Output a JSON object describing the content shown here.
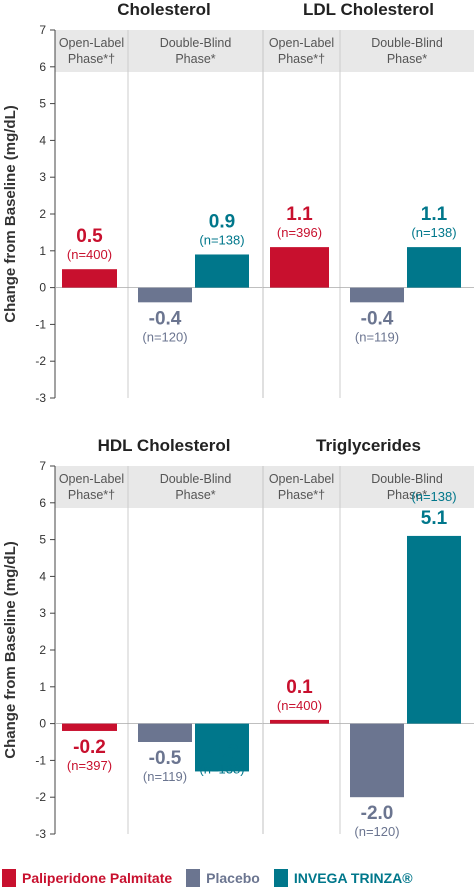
{
  "chart_data": [
    {
      "type": "bar",
      "title": "Cholesterol",
      "ylabel": "Change from Baseline (mg/dL)",
      "ylim": [
        -3,
        7
      ],
      "yticks": [
        "7",
        "6",
        "5",
        "4",
        "3",
        "2",
        "1",
        "0",
        "-1",
        "-2",
        "-3"
      ],
      "phases": [
        "Open-Label Phase*†",
        "Double-Blind Phase*"
      ],
      "bars": [
        {
          "series": "Paliperidone Palmitate",
          "phase": 0,
          "value": 0.5,
          "label": "0.5",
          "n": "(n=400)"
        },
        {
          "series": "Placebo",
          "phase": 1,
          "value": -0.4,
          "label": "-0.4",
          "n": "(n=120)"
        },
        {
          "series": "INVEGA TRINZA®",
          "phase": 1,
          "value": 0.9,
          "label": "0.9",
          "n": "(n=138)"
        }
      ]
    },
    {
      "type": "bar",
      "title": "LDL Cholesterol",
      "ylim": [
        -3,
        7
      ],
      "phases": [
        "Open-Label Phase*†",
        "Double-Blind Phase*"
      ],
      "bars": [
        {
          "series": "Paliperidone Palmitate",
          "phase": 0,
          "value": 1.1,
          "label": "1.1",
          "n": "(n=396)"
        },
        {
          "series": "Placebo",
          "phase": 1,
          "value": -0.4,
          "label": "-0.4",
          "n": "(n=119)"
        },
        {
          "series": "INVEGA TRINZA®",
          "phase": 1,
          "value": 1.1,
          "label": "1.1",
          "n": "(n=138)"
        }
      ]
    },
    {
      "type": "bar",
      "title": "HDL Cholesterol",
      "ylabel": "Change from Baseline (mg/dL)",
      "ylim": [
        -3,
        7
      ],
      "yticks": [
        "7",
        "6",
        "5",
        "4",
        "3",
        "2",
        "1",
        "0",
        "-1",
        "-2",
        "-3"
      ],
      "phases": [
        "Open-Label Phase*†",
        "Double-Blind Phase*"
      ],
      "bars": [
        {
          "series": "Paliperidone Palmitate",
          "phase": 0,
          "value": -0.2,
          "label": "-0.2",
          "n": "(n=397)"
        },
        {
          "series": "Placebo",
          "phase": 1,
          "value": -0.5,
          "label": "-0.5",
          "n": "(n=119)"
        },
        {
          "series": "INVEGA TRINZA®",
          "phase": 1,
          "value": -1.3,
          "label": "-1.3",
          "n": "(n=138)"
        }
      ]
    },
    {
      "type": "bar",
      "title": "Triglycerides",
      "ylim": [
        -3,
        7
      ],
      "phases": [
        "Open-Label Phase*†",
        "Double-Blind Phase*"
      ],
      "bars": [
        {
          "series": "Paliperidone Palmitate",
          "phase": 0,
          "value": 0.1,
          "label": "0.1",
          "n": "(n=400)"
        },
        {
          "series": "Placebo",
          "phase": 1,
          "value": -2.0,
          "label": "-2.0",
          "n": "(n=120)"
        },
        {
          "series": "INVEGA TRINZA®",
          "phase": 1,
          "value": 5.1,
          "label": "5.1",
          "n": "(n=138)"
        }
      ]
    }
  ],
  "legend": [
    {
      "name": "Paliperidone Palmitate",
      "color": "#c8102e"
    },
    {
      "name": "Placebo",
      "color": "#6b7590"
    },
    {
      "name": "INVEGA TRINZA®",
      "color": "#00778b"
    }
  ],
  "colors": {
    "Paliperidone Palmitate": "#c8102e",
    "Placebo": "#6b7590",
    "INVEGA TRINZA®": "#00778b",
    "Placebo_label": "#6b7590",
    "phase_band": "#e8e8e8",
    "divider": "#cccccc"
  }
}
